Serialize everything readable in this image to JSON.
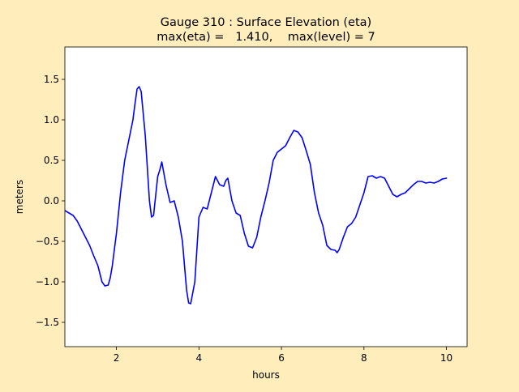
{
  "chart_data": {
    "type": "line",
    "title_line1": "Gauge 310 : Surface Elevation (eta)",
    "title_line2": "max(eta) =   1.410,    max(level) = 7",
    "xlabel": "hours",
    "ylabel": "meters",
    "xlim": [
      0.75,
      10.5
    ],
    "ylim": [
      -1.8,
      1.9
    ],
    "xticks": [
      2,
      4,
      6,
      8,
      10
    ],
    "yticks": [
      -1.5,
      -1.0,
      -0.5,
      0.0,
      0.5,
      1.0,
      1.5
    ],
    "ytick_labels": [
      "−1.5",
      "−1.0",
      "−0.5",
      "0.0",
      "0.5",
      "1.0",
      "1.5"
    ],
    "grid": false,
    "series": [
      {
        "color": "#0000ff",
        "x": [
          0.75,
          0.85,
          0.95,
          1.05,
          1.15,
          1.25,
          1.35,
          1.45,
          1.55,
          1.65,
          1.72,
          1.8,
          1.85,
          1.9,
          2.0,
          2.1,
          2.2,
          2.3,
          2.4,
          2.45,
          2.5,
          2.55,
          2.6,
          2.7,
          2.8,
          2.85,
          2.9,
          3.0,
          3.05,
          3.1,
          3.2,
          3.3,
          3.4,
          3.5,
          3.6,
          3.7,
          3.75,
          3.8,
          3.9,
          4.0,
          4.1,
          4.2,
          4.3,
          4.4,
          4.5,
          4.6,
          4.65,
          4.7,
          4.8,
          4.9,
          5.0,
          5.1,
          5.2,
          5.3,
          5.4,
          5.5,
          5.6,
          5.7,
          5.8,
          5.9,
          6.0,
          6.1,
          6.2,
          6.3,
          6.4,
          6.5,
          6.6,
          6.7,
          6.8,
          6.9,
          7.0,
          7.1,
          7.2,
          7.3,
          7.35,
          7.4,
          7.5,
          7.6,
          7.7,
          7.8,
          7.9,
          8.0,
          8.1,
          8.2,
          8.3,
          8.4,
          8.5,
          8.6,
          8.7,
          8.8,
          8.9,
          9.0,
          9.1,
          9.2,
          9.3,
          9.4,
          9.5,
          9.6,
          9.7,
          9.8,
          9.9,
          10.0
        ],
        "y": [
          -0.12,
          -0.15,
          -0.18,
          -0.25,
          -0.35,
          -0.45,
          -0.55,
          -0.68,
          -0.8,
          -1.0,
          -1.05,
          -1.04,
          -0.95,
          -0.8,
          -0.4,
          0.1,
          0.5,
          0.75,
          1.0,
          1.2,
          1.38,
          1.41,
          1.35,
          0.8,
          0.0,
          -0.2,
          -0.18,
          0.3,
          0.38,
          0.48,
          0.2,
          -0.02,
          0.0,
          -0.2,
          -0.5,
          -1.1,
          -1.26,
          -1.27,
          -1.0,
          -0.2,
          -0.08,
          -0.1,
          0.1,
          0.3,
          0.2,
          0.18,
          0.25,
          0.28,
          0.0,
          -0.15,
          -0.18,
          -0.4,
          -0.56,
          -0.58,
          -0.45,
          -0.2,
          0.0,
          0.22,
          0.5,
          0.6,
          0.64,
          0.68,
          0.78,
          0.87,
          0.85,
          0.78,
          0.62,
          0.45,
          0.1,
          -0.15,
          -0.3,
          -0.55,
          -0.6,
          -0.61,
          -0.64,
          -0.6,
          -0.45,
          -0.32,
          -0.28,
          -0.2,
          -0.05,
          0.1,
          0.3,
          0.31,
          0.28,
          0.3,
          0.28,
          0.18,
          0.08,
          0.05,
          0.08,
          0.1,
          0.15,
          0.2,
          0.24,
          0.24,
          0.22,
          0.23,
          0.22,
          0.24,
          0.27,
          0.28
        ]
      }
    ]
  }
}
